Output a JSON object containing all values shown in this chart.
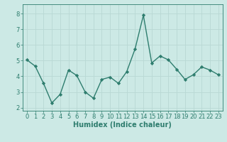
{
  "x": [
    0,
    1,
    2,
    3,
    4,
    5,
    6,
    7,
    8,
    9,
    10,
    11,
    12,
    13,
    14,
    15,
    16,
    17,
    18,
    19,
    20,
    21,
    22,
    23
  ],
  "y": [
    5.05,
    4.65,
    3.55,
    2.3,
    2.85,
    4.4,
    4.05,
    3.0,
    2.6,
    3.8,
    3.95,
    3.55,
    4.3,
    5.75,
    7.9,
    4.85,
    5.3,
    5.05,
    4.45,
    3.8,
    4.1,
    4.6,
    4.4,
    4.1
  ],
  "line_color": "#2e7d6e",
  "marker": "D",
  "marker_size": 2.2,
  "line_width": 1.0,
  "xlabel": "Humidex (Indice chaleur)",
  "xlabel_fontsize": 7,
  "xlim": [
    -0.5,
    23.5
  ],
  "ylim": [
    1.8,
    8.6
  ],
  "yticks": [
    2,
    3,
    4,
    5,
    6,
    7,
    8
  ],
  "xticks": [
    0,
    1,
    2,
    3,
    4,
    5,
    6,
    7,
    8,
    9,
    10,
    11,
    12,
    13,
    14,
    15,
    16,
    17,
    18,
    19,
    20,
    21,
    22,
    23
  ],
  "bg_color": "#cce9e5",
  "grid_color": "#b8d8d4",
  "tick_fontsize": 6
}
